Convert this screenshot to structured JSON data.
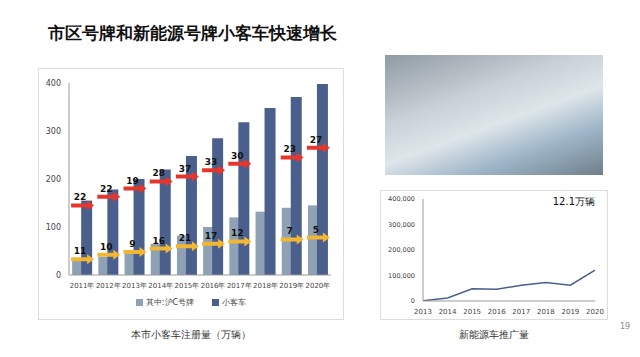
{
  "title": "市区号牌和新能源号牌小客车快速增长",
  "page": 19,
  "chart_data": [
    {
      "type": "bar",
      "title": "本市小客车注册量（万辆）",
      "categories": [
        "2011年",
        "2012年",
        "2013年",
        "2014年",
        "2015年",
        "2016年",
        "2017年",
        "2018年",
        "2019年",
        "2020年"
      ],
      "series": [
        {
          "name": "其中:沪C号牌",
          "color": "#8fa1b5",
          "values": [
            30,
            38,
            48,
            65,
            82,
            100,
            120,
            132,
            140,
            145
          ]
        },
        {
          "name": "小客车",
          "color": "#4b5f8c",
          "values": [
            155,
            178,
            200,
            220,
            248,
            285,
            318,
            348,
            371,
            398
          ]
        }
      ],
      "ylim": [
        0,
        400
      ],
      "yticks": [
        0,
        100,
        200,
        300,
        400
      ],
      "grid": false,
      "legend": "bottom",
      "annotations": [
        {
          "color": "#e5362b",
          "marker": "arrow",
          "y": [
            145,
            163,
            180,
            195,
            205,
            218,
            232,
            null,
            245,
            265
          ],
          "labels": [
            22,
            22,
            19,
            28,
            37,
            33,
            30,
            null,
            23,
            27
          ]
        },
        {
          "color": "#f2b632",
          "marker": "arrow",
          "y": [
            33,
            42,
            48,
            55,
            60,
            65,
            70,
            null,
            74,
            78
          ],
          "labels": [
            11,
            10,
            9,
            16,
            21,
            17,
            12,
            null,
            7,
            5
          ]
        }
      ]
    },
    {
      "type": "line",
      "title": "新能源车推广量",
      "categories": [
        "2013",
        "2014",
        "2015",
        "2016",
        "2017",
        "2018",
        "2019",
        "2020"
      ],
      "values": [
        1000,
        12000,
        48000,
        46000,
        62000,
        73000,
        62000,
        121000
      ],
      "color": "#4b5f8c",
      "ylim": [
        0,
        400000
      ],
      "yticks": [
        0,
        {
          "value": 100000,
          "label": "100,000"
        },
        {
          "value": 200000,
          "label": "200,000"
        },
        {
          "value": 300000,
          "label": "300,000"
        },
        {
          "value": 400000,
          "label": "400,000"
        }
      ],
      "grid": false,
      "annotations": [
        {
          "text": "12.1万辆"
        }
      ]
    }
  ]
}
